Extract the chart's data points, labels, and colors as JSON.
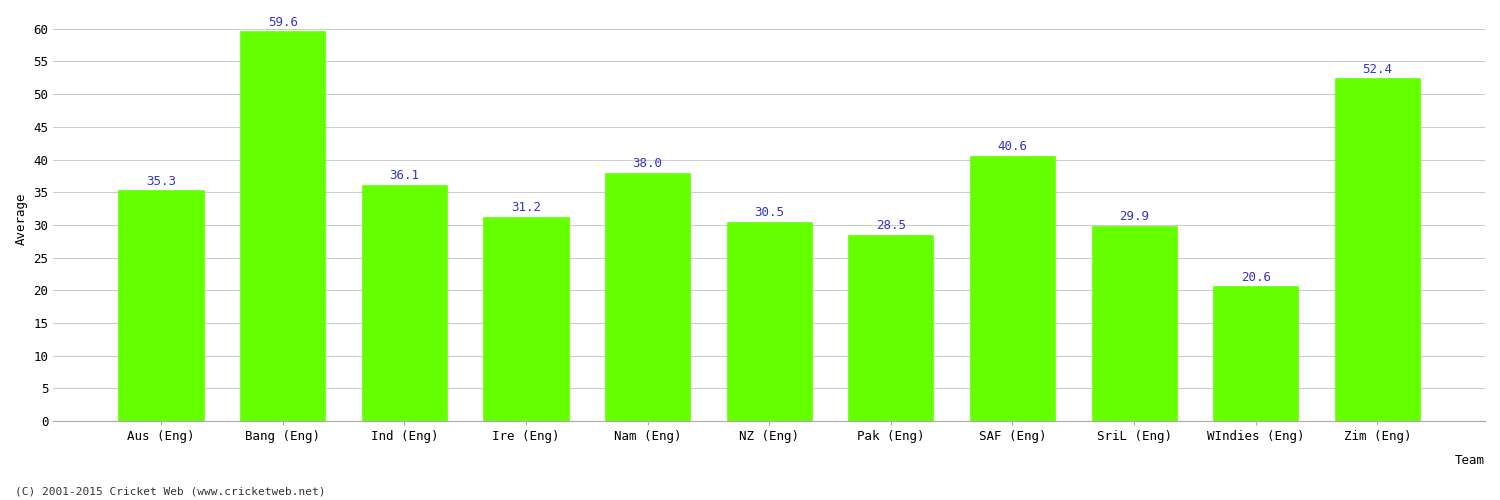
{
  "categories": [
    "Aus (Eng)",
    "Bang (Eng)",
    "Ind (Eng)",
    "Ire (Eng)",
    "Nam (Eng)",
    "NZ (Eng)",
    "Pak (Eng)",
    "SAF (Eng)",
    "SriL (Eng)",
    "WIndies (Eng)",
    "Zim (Eng)"
  ],
  "values": [
    35.3,
    59.6,
    36.1,
    31.2,
    38.0,
    30.5,
    28.5,
    40.6,
    29.9,
    20.6,
    52.4
  ],
  "bar_color": "#66ff00",
  "bar_edge_color": "#66ff00",
  "label_color": "#3333cc",
  "xlabel": "Team",
  "ylabel": "Average",
  "ylim": [
    0,
    62
  ],
  "yticks": [
    0,
    5,
    10,
    15,
    20,
    25,
    30,
    35,
    40,
    45,
    50,
    55,
    60
  ],
  "grid_color": "#cccccc",
  "bg_color": "#ffffff",
  "footer_text": "(C) 2001-2015 Cricket Web (www.cricketweb.net)",
  "label_fontsize": 9,
  "axis_fontsize": 9,
  "tick_fontsize": 9
}
